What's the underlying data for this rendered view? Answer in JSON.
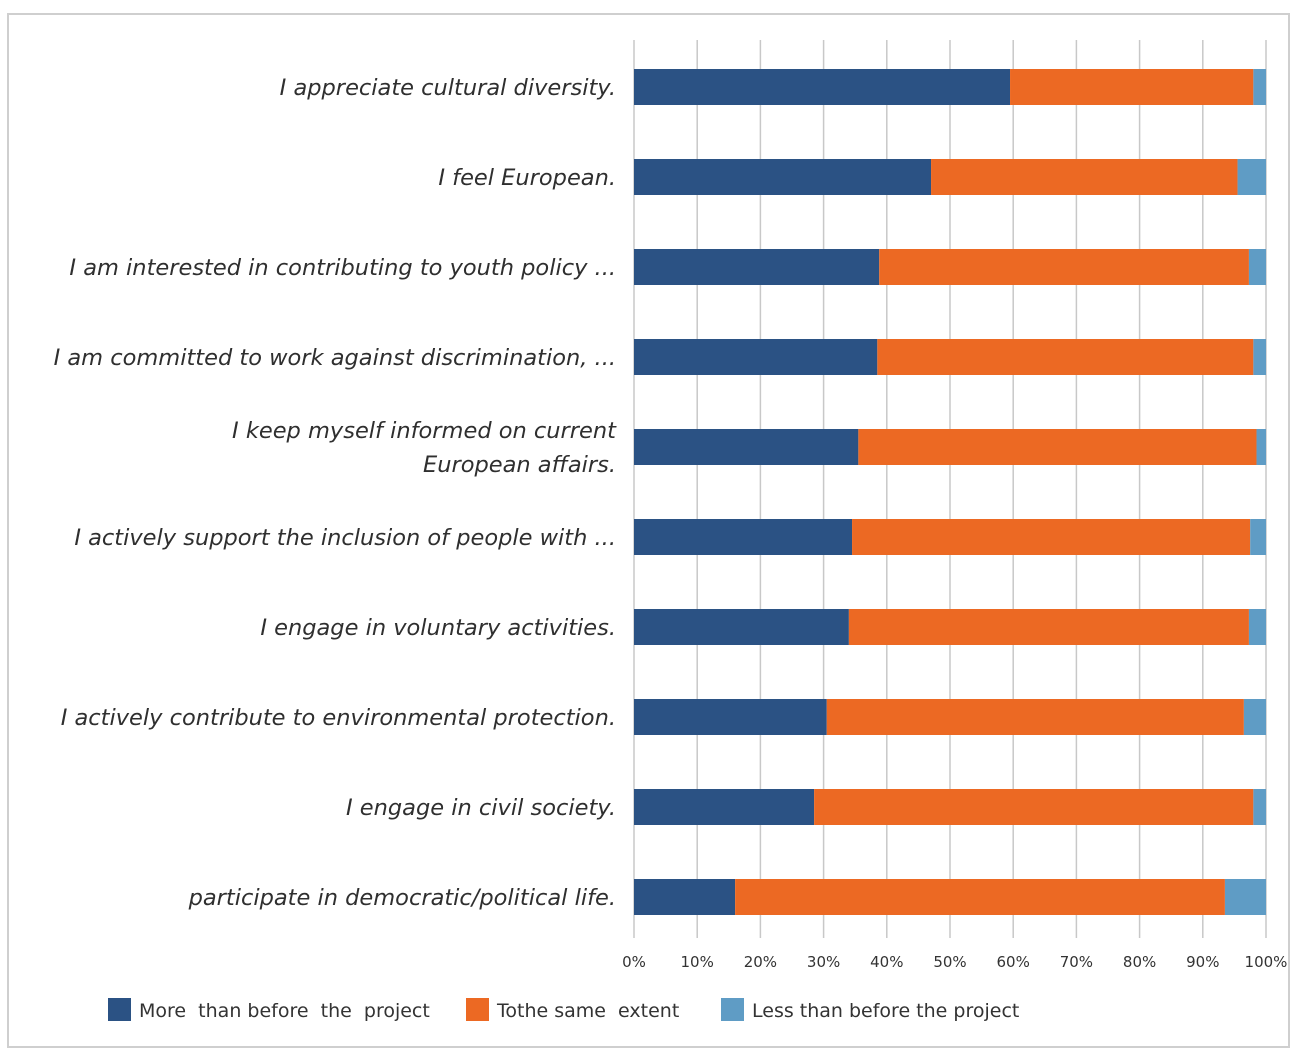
{
  "chart_data": {
    "type": "bar",
    "orientation": "horizontal",
    "stacked": "percent",
    "categories": [
      [
        "I appreciate cultural diversity."
      ],
      [
        "I feel European."
      ],
      [
        "I am interested in contributing to youth policy ..."
      ],
      [
        "I am committed to work against discrimination, ..."
      ],
      [
        "I keep myself informed on current",
        "European affairs."
      ],
      [
        "I actively support the inclusion of people with ..."
      ],
      [
        "I engage in voluntary activities."
      ],
      [
        "I actively contribute to environmental protection."
      ],
      [
        "I engage in civil society."
      ],
      [
        "participate in democratic/political life."
      ]
    ],
    "series": [
      {
        "name": "More  than before  the  project",
        "color": "#2b5284",
        "values": [
          59.5,
          47,
          38.8,
          38.5,
          35.5,
          34.5,
          34,
          30.5,
          28.5,
          16
        ]
      },
      {
        "name": "Tothe same  extent",
        "color": "#ec6923",
        "values": [
          38.5,
          48.5,
          58.5,
          59.5,
          63,
          63,
          63.3,
          66,
          69.5,
          77.5
        ]
      },
      {
        "name": "Less than before the project",
        "color": "#5f9cc5",
        "values": [
          2,
          4.5,
          2.7,
          2,
          1.5,
          2.5,
          2.7,
          3.5,
          2,
          6.5
        ]
      }
    ],
    "x_ticks": [
      "0%",
      "10%",
      "20%",
      "30%",
      "40%",
      "50%",
      "60%",
      "70%",
      "80%",
      "90%",
      "100%"
    ],
    "xlim": [
      0,
      100
    ],
    "grid": "vertical",
    "legend_position": "bottom"
  }
}
